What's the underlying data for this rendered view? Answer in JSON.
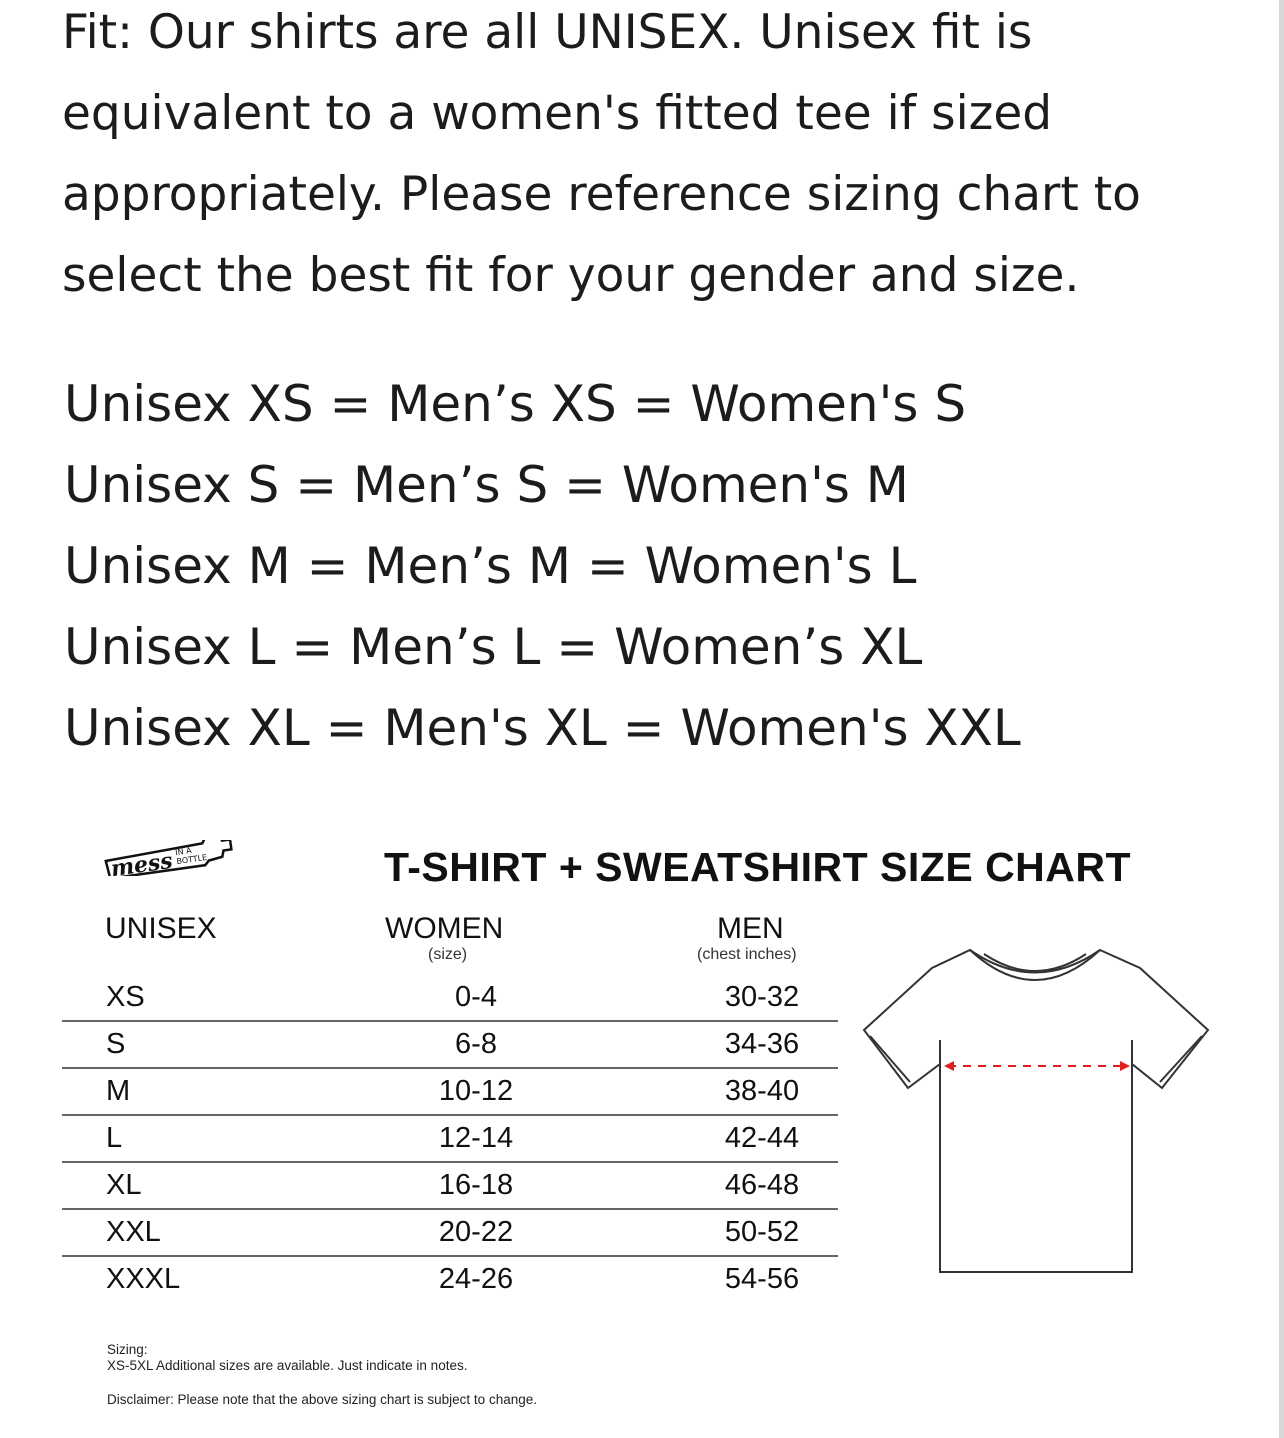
{
  "intro": "Fit: Our shirts are all UNISEX. Unisex fit is equivalent to a women's fitted tee if sized appropriately. Please reference sizing chart to select the best fit for your gender and size.",
  "equivalences": [
    "Unisex XS = Men’s XS = Women's S",
    "Unisex S = Men’s S = Women's M",
    "Unisex M = Men’s M = Women's L",
    "Unisex L = Men’s L = Women’s XL",
    "Unisex XL = Men's XL = Women's XXL"
  ],
  "size_chart": {
    "logo_text": "mess in a bottle",
    "title": "T-SHIRT + SWEATSHIRT SIZE CHART",
    "columns": [
      {
        "label": "UNISEX",
        "sub": ""
      },
      {
        "label": "WOMEN",
        "sub": "(size)"
      },
      {
        "label": "MEN",
        "sub": "(chest inches)"
      }
    ],
    "rows": [
      [
        "XS",
        "0-4",
        "30-32"
      ],
      [
        "S",
        "6-8",
        "34-36"
      ],
      [
        "M",
        "10-12",
        "38-40"
      ],
      [
        "L",
        "12-14",
        "42-44"
      ],
      [
        "XL",
        "16-18",
        "46-48"
      ],
      [
        "XXL",
        "20-22",
        "50-52"
      ],
      [
        "XXXL",
        "24-26",
        "54-56"
      ]
    ],
    "measure_color": "#e02020",
    "sizing_label": "Sizing:",
    "sizing_note": "XS-5XL Additional sizes are available. Just indicate in notes.",
    "disclaimer": "Disclaimer: Please note that the above sizing chart is subject to change."
  }
}
